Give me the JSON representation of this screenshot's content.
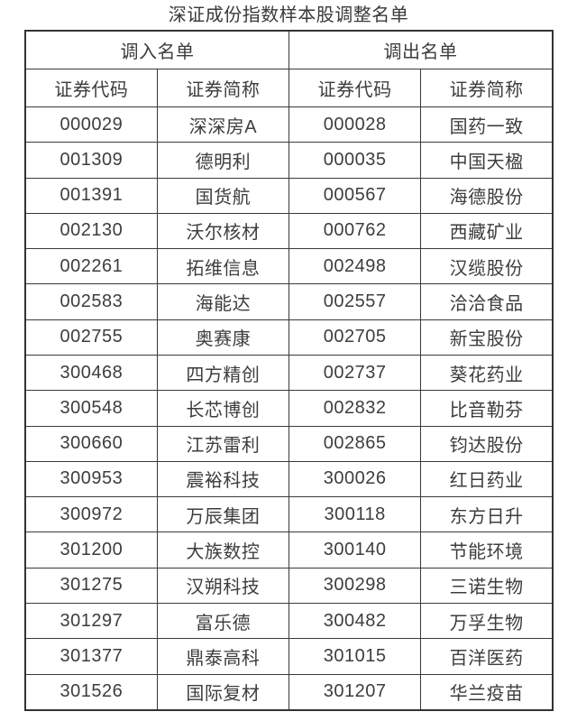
{
  "page": {
    "title": "深证成份指数样本股调整名单"
  },
  "table": {
    "group_headers": [
      {
        "label": "调入名单"
      },
      {
        "label": "调出名单"
      }
    ],
    "sub_headers": [
      "证券代码",
      "证券简称",
      "证券代码",
      "证券简称"
    ],
    "rows": [
      {
        "code_in": "000029",
        "name_in": "深深房A",
        "code_out": "000028",
        "name_out": "国药一致"
      },
      {
        "code_in": "001309",
        "name_in": "德明利",
        "code_out": "000035",
        "name_out": "中国天楹"
      },
      {
        "code_in": "001391",
        "name_in": "国货航",
        "code_out": "000567",
        "name_out": "海德股份"
      },
      {
        "code_in": "002130",
        "name_in": "沃尔核材",
        "code_out": "000762",
        "name_out": "西藏矿业"
      },
      {
        "code_in": "002261",
        "name_in": "拓维信息",
        "code_out": "002498",
        "name_out": "汉缆股份"
      },
      {
        "code_in": "002583",
        "name_in": "海能达",
        "code_out": "002557",
        "name_out": "洽洽食品"
      },
      {
        "code_in": "002755",
        "name_in": "奥赛康",
        "code_out": "002705",
        "name_out": "新宝股份"
      },
      {
        "code_in": "300468",
        "name_in": "四方精创",
        "code_out": "002737",
        "name_out": "葵花药业"
      },
      {
        "code_in": "300548",
        "name_in": "长芯博创",
        "code_out": "002832",
        "name_out": "比音勒芬"
      },
      {
        "code_in": "300660",
        "name_in": "江苏雷利",
        "code_out": "002865",
        "name_out": "钧达股份"
      },
      {
        "code_in": "300953",
        "name_in": "震裕科技",
        "code_out": "300026",
        "name_out": "红日药业"
      },
      {
        "code_in": "300972",
        "name_in": "万辰集团",
        "code_out": "300118",
        "name_out": "东方日升"
      },
      {
        "code_in": "301200",
        "name_in": "大族数控",
        "code_out": "300140",
        "name_out": "节能环境"
      },
      {
        "code_in": "301275",
        "name_in": "汉朔科技",
        "code_out": "300298",
        "name_out": "三诺生物"
      },
      {
        "code_in": "301297",
        "name_in": "富乐德",
        "code_out": "300482",
        "name_out": "万孚生物"
      },
      {
        "code_in": "301377",
        "name_in": "鼎泰高科",
        "code_out": "301015",
        "name_out": "百洋医药"
      },
      {
        "code_in": "301526",
        "name_in": "国际复材",
        "code_out": "301207",
        "name_out": "华兰疫苗"
      }
    ]
  }
}
